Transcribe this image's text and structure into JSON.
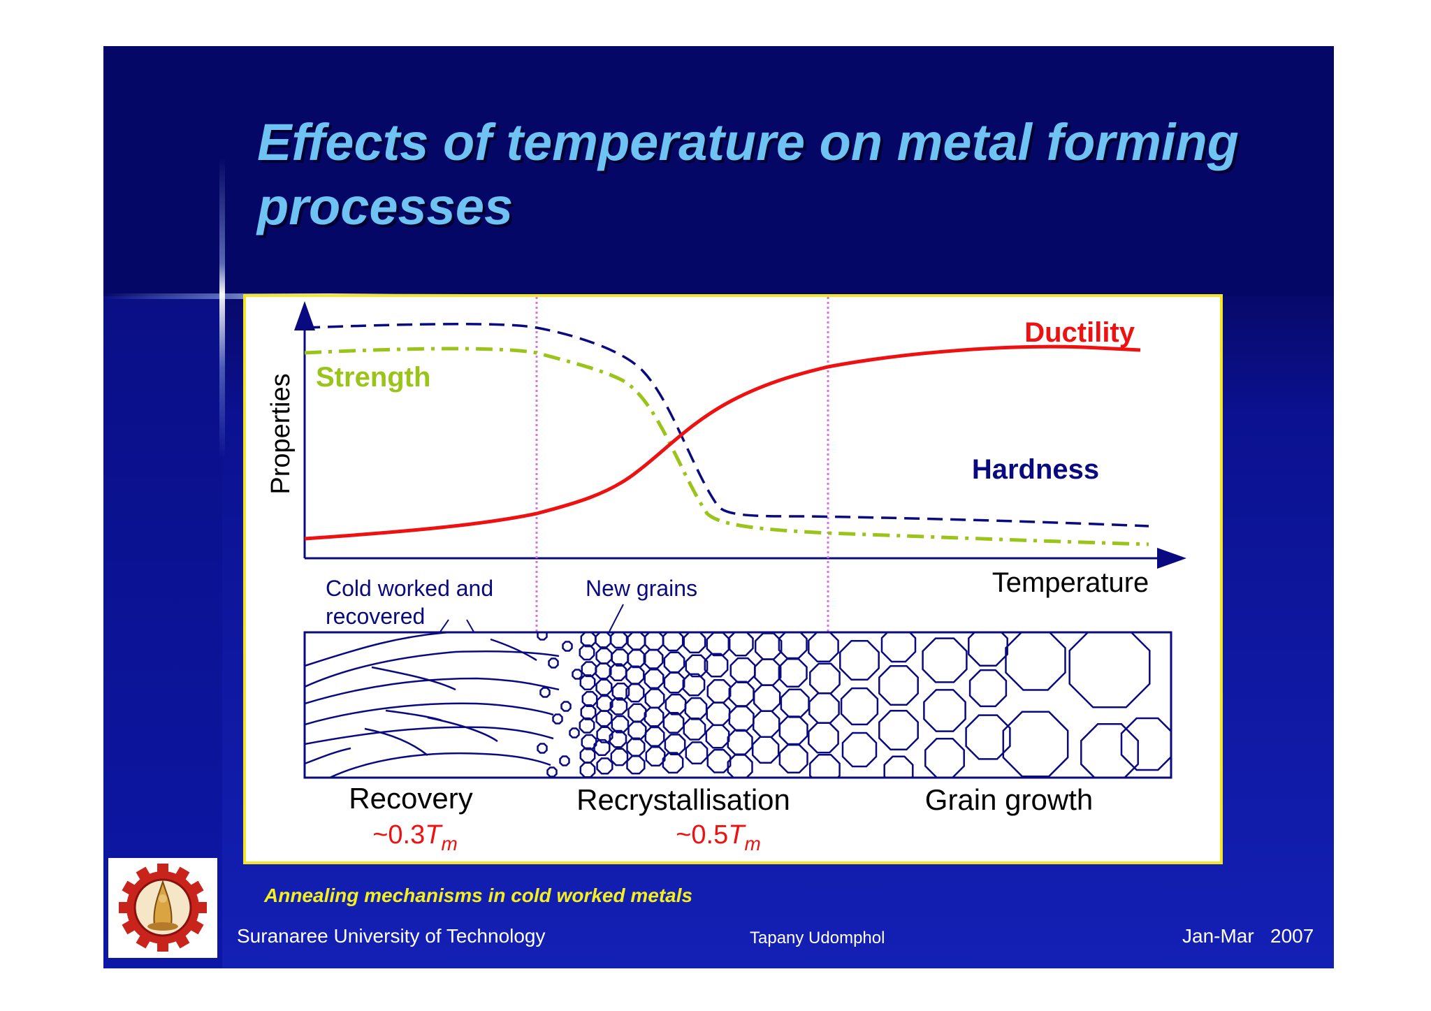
{
  "title": "Effects of temperature on metal forming processes",
  "figure": {
    "y_axis_label": "Properties",
    "x_axis_label": "Temperature",
    "curves": [
      {
        "name": "Strength",
        "color": "#9bc41a",
        "style": "dash-dot"
      },
      {
        "name": "Hardness",
        "color": "#0a0a80",
        "style": "dashed"
      },
      {
        "name": "Ductility",
        "color": "#ee1111",
        "style": "solid"
      }
    ],
    "annotations": {
      "cold_worked_line1": "Cold worked and",
      "cold_worked_line2": "recovered",
      "new_grains": "New grains"
    },
    "stages": [
      "Recovery",
      "Recrystallisation",
      "Grain growth"
    ],
    "temperatures": [
      {
        "prefix": "~0.3",
        "symbol": "T",
        "subscript": "m"
      },
      {
        "prefix": "~0.5",
        "symbol": "T",
        "subscript": "m"
      }
    ]
  },
  "caption": "Annealing mechanisms in cold worked metals",
  "footer": {
    "organization": "Suranaree University of Technology",
    "author": "Tapany  Udomphol",
    "date": "Jan-Mar   2007"
  },
  "colors": {
    "title_text": "#6fc3f3",
    "panel_border": "#f3e52a",
    "caption_text": "#f3f01e",
    "temperature_text": "#ee1111",
    "microstructure_line": "#0a0a80",
    "stage_divider": "#e070e0"
  },
  "logo_icon": "university-gear-emblem-icon"
}
